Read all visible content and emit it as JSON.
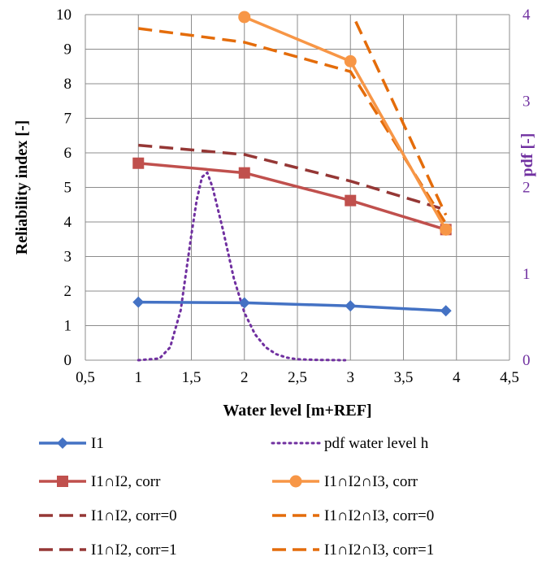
{
  "chart_data": {
    "type": "line",
    "xlabel": "Water level [m+REF]",
    "ylabel": "Reliability index [-]",
    "ylabel_right": "pdf [-]",
    "xlim": [
      0.5,
      4.5
    ],
    "ylim": [
      0,
      10
    ],
    "ylim_right": [
      0,
      4
    ],
    "x_ticks": [
      "0,5",
      "1",
      "1,5",
      "2",
      "2,5",
      "3",
      "3,5",
      "4",
      "4,5"
    ],
    "y_ticks": [
      "0",
      "1",
      "2",
      "3",
      "4",
      "5",
      "6",
      "7",
      "8",
      "9",
      "10"
    ],
    "y_right_ticks": [
      "0",
      "1",
      "2",
      "3",
      "4"
    ],
    "grid": true,
    "legend_position": "bottom",
    "series": [
      {
        "name": "I1",
        "color": "#4472c4",
        "style": "solid",
        "marker": "diamond",
        "axis": "left",
        "x": [
          1,
          2,
          3,
          3.9
        ],
        "y": [
          1.68,
          1.66,
          1.57,
          1.43
        ]
      },
      {
        "name": "pdf water level h",
        "color": "#7030a0",
        "style": "dotted",
        "marker": "none",
        "axis": "right",
        "x": [
          1.0,
          1.2,
          1.3,
          1.4,
          1.5,
          1.55,
          1.6,
          1.65,
          1.7,
          1.8,
          1.9,
          2.0,
          2.1,
          2.2,
          2.3,
          2.4,
          2.5,
          2.7,
          2.95
        ],
        "y": [
          0.0,
          0.02,
          0.15,
          0.58,
          1.45,
          1.85,
          2.12,
          2.17,
          2.0,
          1.5,
          0.95,
          0.55,
          0.3,
          0.15,
          0.07,
          0.03,
          0.01,
          0.003,
          0.0
        ]
      },
      {
        "name": "I1∩I2, corr",
        "color": "#c0504d",
        "style": "solid",
        "marker": "square",
        "axis": "left",
        "x": [
          1,
          2,
          3,
          3.9
        ],
        "y": [
          5.7,
          5.42,
          4.62,
          3.78
        ]
      },
      {
        "name": "I1∩I2∩I3, corr",
        "color": "#f79646",
        "style": "solid",
        "marker": "circle",
        "axis": "left",
        "x": [
          2,
          3,
          3.9
        ],
        "y": [
          9.93,
          8.65,
          3.78
        ]
      },
      {
        "name": "I1∩I2, corr=0",
        "color": "#953735",
        "style": "dashed",
        "marker": "none",
        "axis": "left",
        "x": [
          1,
          2,
          3,
          3.9
        ],
        "y": [
          6.22,
          5.95,
          5.18,
          4.35
        ]
      },
      {
        "name": "I1∩I2∩I3, corr=0",
        "color": "#e46c0a",
        "style": "dashed",
        "marker": "none",
        "axis": "left",
        "x": [
          1,
          2,
          3,
          3.9
        ],
        "y": [
          9.6,
          9.2,
          8.35,
          3.95
        ]
      },
      {
        "name": "I1∩I2, corr=1",
        "color": "#953735",
        "style": "dashed",
        "marker": "none",
        "axis": "left",
        "x": [],
        "y": []
      },
      {
        "name": "I1∩I2∩I3, corr=1",
        "color": "#e46c0a",
        "style": "dashed",
        "marker": "none",
        "axis": "left",
        "x": [
          3.05,
          3.9
        ],
        "y": [
          9.8,
          4.2
        ]
      }
    ]
  }
}
